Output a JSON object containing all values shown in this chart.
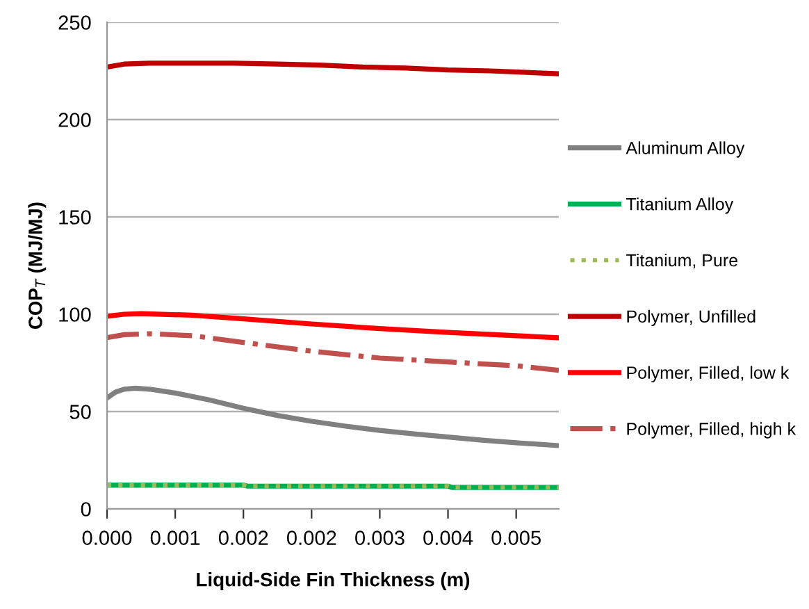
{
  "chart_data": {
    "type": "line",
    "xlabel": "Liquid-Side Fin Thickness (m)",
    "ylabel": "COP$_{T}$ (MJ/MJ)",
    "xlim": [
      0,
      0.0053
    ],
    "xticks": [
      {
        "value": 0,
        "label": "0.000"
      },
      {
        "value": 0.0008,
        "label": "0.001"
      },
      {
        "value": 0.0016,
        "label": "0.002"
      },
      {
        "value": 0.0024,
        "label": "0.002"
      },
      {
        "value": 0.0032,
        "label": "0.003"
      },
      {
        "value": 0.004,
        "label": "0.004"
      },
      {
        "value": 0.0048,
        "label": "0.005"
      }
    ],
    "ylim": [
      0,
      250
    ],
    "yticks": [
      0,
      50,
      100,
      150,
      200,
      250
    ],
    "grid": "y",
    "legend": "right",
    "marker": "none",
    "series": [
      {
        "name": "Aluminum Alloy",
        "color": "#808080",
        "line_style": "solid",
        "x": [
          0,
          0.0001,
          0.0002,
          0.00033,
          0.0005,
          0.0008,
          0.0012,
          0.0016,
          0.002,
          0.0024,
          0.0028,
          0.0032,
          0.0036,
          0.004,
          0.0044,
          0.0048,
          0.0053
        ],
        "values": [
          57,
          60,
          61.5,
          62,
          61.5,
          59.5,
          56,
          51.7,
          48,
          45,
          42.5,
          40.3,
          38.5,
          36.9,
          35.3,
          34,
          32.5
        ]
      },
      {
        "name": "Titanium Alloy",
        "color": "#00b050",
        "line_style": "solid",
        "x": [
          0,
          0.0016,
          0.00165,
          0.004,
          0.00405,
          0.0053
        ],
        "values": [
          12.2,
          12.2,
          11.7,
          11.7,
          11,
          11
        ]
      },
      {
        "name": "Titanium, Pure",
        "color": "#9bbb59",
        "line_style": "dotted",
        "x": [
          0,
          0.0016,
          0.00165,
          0.004,
          0.00405,
          0.0053
        ],
        "values": [
          12.2,
          12.2,
          11.7,
          11.7,
          11,
          11
        ]
      },
      {
        "name": "Polymer, Unfilled",
        "color": "#c00000",
        "line_style": "solid",
        "x": [
          0,
          0.0002,
          0.0005,
          0.001,
          0.0015,
          0.002,
          0.0025,
          0.003,
          0.0035,
          0.004,
          0.0045,
          0.0053
        ],
        "values": [
          227,
          228.5,
          229,
          229,
          229,
          228.5,
          228,
          227,
          226.5,
          225.5,
          225,
          223.5
        ]
      },
      {
        "name": "Polymer, Filled, low k",
        "color": "#ff0000",
        "line_style": "solid",
        "x": [
          0,
          0.0002,
          0.0004,
          0.001,
          0.0016,
          0.0024,
          0.0032,
          0.004,
          0.0048,
          0.0053
        ],
        "values": [
          99,
          100,
          100.3,
          99.5,
          97.6,
          95,
          92.6,
          90.7,
          89,
          87.9
        ]
      },
      {
        "name": "Polymer, Filled, high k",
        "color": "#c0504d",
        "line_style": "dashdot",
        "x": [
          0,
          0.0002,
          0.0005,
          0.001,
          0.0016,
          0.0024,
          0.0032,
          0.004,
          0.0048,
          0.0053
        ],
        "values": [
          88,
          89.5,
          90,
          89,
          85.5,
          81,
          77.5,
          75.5,
          73.5,
          71.2
        ]
      }
    ]
  }
}
